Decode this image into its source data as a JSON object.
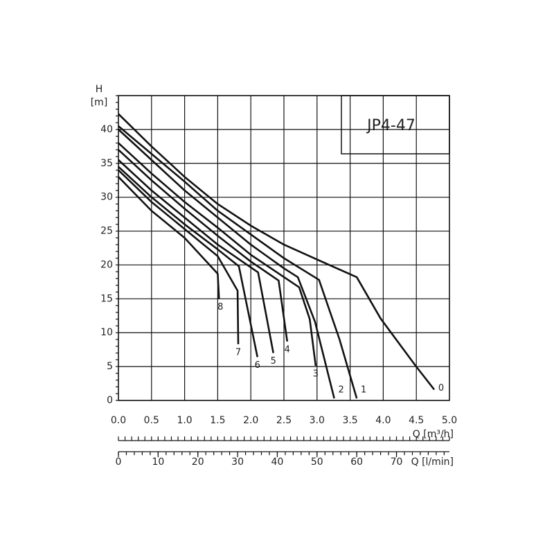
{
  "chart_data": {
    "type": "line",
    "title": "JP4-47",
    "y_label_top": "H",
    "y_label": "[m]",
    "x_label": "Q [m³/h]",
    "x2_label": "Q [l/min]",
    "xlim": [
      0,
      5
    ],
    "ylim": [
      0,
      45
    ],
    "xticks": [
      {
        "value": 0,
        "label": "0.0"
      },
      0.5,
      {
        "value": 1,
        "label": "1.0"
      },
      1.5,
      {
        "value": 2,
        "label": "2.0"
      },
      2.5,
      {
        "value": 3,
        "label": "3.0"
      },
      3.5,
      {
        "value": 4,
        "label": "4.0"
      },
      4.5,
      {
        "value": 5,
        "label": "5.0"
      }
    ],
    "yticks": [
      0,
      5,
      10,
      15,
      20,
      25,
      30,
      35,
      40
    ],
    "x2lim": [
      0,
      83.33
    ],
    "x2ticks": [
      0,
      10,
      20,
      30,
      40,
      50,
      60,
      70
    ],
    "grid": true,
    "series": [
      {
        "name": "0",
        "color": "#111111",
        "x": [
          0,
          0.5,
          1.0,
          1.5,
          2.0,
          2.5,
          3.0,
          3.6,
          3.96,
          4.49,
          4.77
        ],
        "values": [
          42.3,
          37.5,
          33,
          29,
          25.8,
          23,
          20.8,
          18.2,
          12.1,
          5.1,
          1.6
        ]
      },
      {
        "name": "1",
        "color": "#111111",
        "x": [
          0,
          0.5,
          1.0,
          1.5,
          2.0,
          2.5,
          3.03,
          3.34,
          3.6
        ],
        "values": [
          40.5,
          36.4,
          32.3,
          28,
          24.5,
          21,
          17.8,
          9,
          0.3
        ]
      },
      {
        "name": "2",
        "color": "#111111",
        "x": [
          0,
          0.5,
          1.0,
          1.5,
          2.0,
          2.5,
          2.71,
          2.97,
          3.26
        ],
        "values": [
          40,
          35.5,
          31,
          27,
          23,
          19.5,
          18.2,
          11.6,
          0.3
        ]
      },
      {
        "name": "3",
        "color": "#111111",
        "x": [
          0,
          0.5,
          1.0,
          1.5,
          2.0,
          2.73,
          2.89,
          2.98
        ],
        "values": [
          38,
          33.5,
          29.3,
          25.5,
          21.5,
          16.7,
          12,
          5.1
        ]
      },
      {
        "name": "4",
        "color": "#111111",
        "x": [
          0,
          0.5,
          1.0,
          1.5,
          2.0,
          2.42,
          2.55
        ],
        "values": [
          37,
          32.5,
          28.3,
          24.3,
          20.5,
          17.7,
          8.7
        ]
      },
      {
        "name": "5",
        "color": "#111111",
        "x": [
          0,
          0.5,
          1.0,
          1.5,
          2.11,
          2.34
        ],
        "values": [
          35.5,
          31,
          27,
          23,
          18.9,
          7
        ]
      },
      {
        "name": "6",
        "color": "#111111",
        "x": [
          0,
          0.5,
          1.0,
          1.5,
          1.82,
          2.1
        ],
        "values": [
          34.5,
          30,
          26,
          22.3,
          19.8,
          6.4
        ]
      },
      {
        "name": "7",
        "color": "#111111",
        "x": [
          0,
          0.5,
          1.0,
          1.5,
          1.8,
          1.81
        ],
        "values": [
          34,
          29.3,
          25.3,
          21.3,
          16.2,
          8.3
        ]
      },
      {
        "name": "8",
        "color": "#111111",
        "x": [
          0,
          0.5,
          1.0,
          1.5,
          1.52
        ],
        "values": [
          33,
          28,
          24,
          18.7,
          15
        ]
      }
    ]
  }
}
